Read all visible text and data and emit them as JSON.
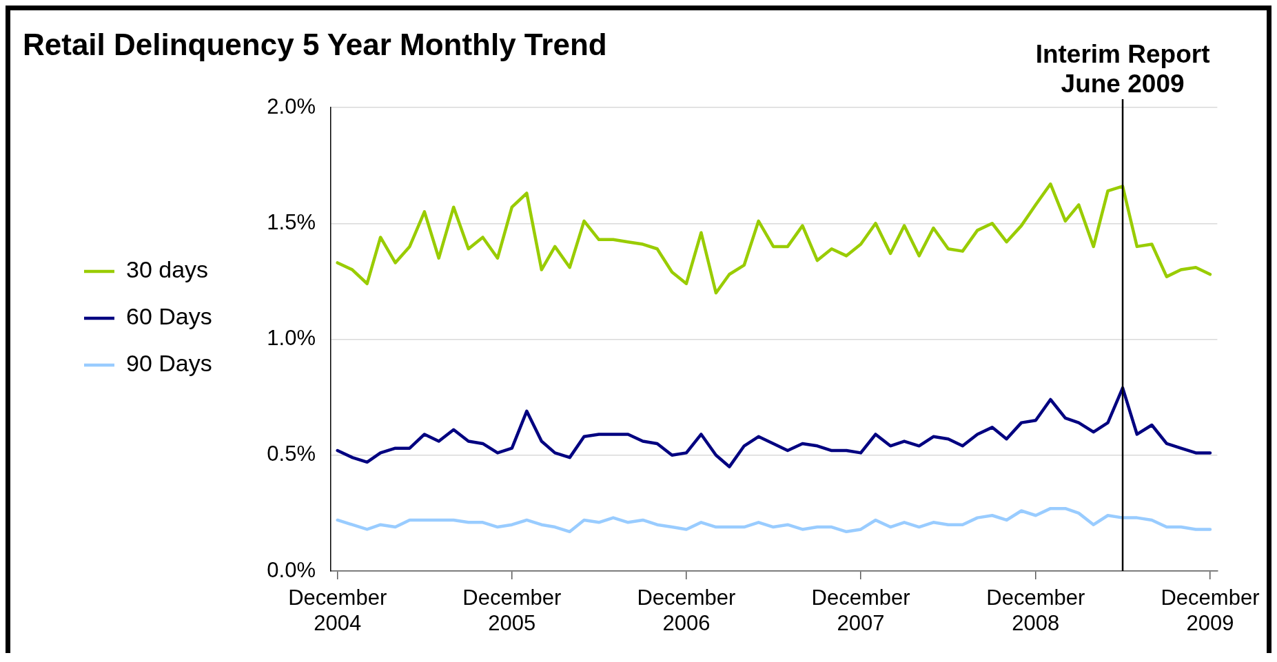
{
  "chart_data": {
    "type": "line",
    "title": "Retail Delinquency 5 Year Monthly Trend",
    "x": [
      "2004-12",
      "2005-01",
      "2005-02",
      "2005-03",
      "2005-04",
      "2005-05",
      "2005-06",
      "2005-07",
      "2005-08",
      "2005-09",
      "2005-10",
      "2005-11",
      "2005-12",
      "2006-01",
      "2006-02",
      "2006-03",
      "2006-04",
      "2006-05",
      "2006-06",
      "2006-07",
      "2006-08",
      "2006-09",
      "2006-10",
      "2006-11",
      "2006-12",
      "2007-01",
      "2007-02",
      "2007-03",
      "2007-04",
      "2007-05",
      "2007-06",
      "2007-07",
      "2007-08",
      "2007-09",
      "2007-10",
      "2007-11",
      "2007-12",
      "2008-01",
      "2008-02",
      "2008-03",
      "2008-04",
      "2008-05",
      "2008-06",
      "2008-07",
      "2008-08",
      "2008-09",
      "2008-10",
      "2008-11",
      "2008-12",
      "2009-01",
      "2009-02",
      "2009-03",
      "2009-04",
      "2009-05",
      "2009-06",
      "2009-07",
      "2009-08",
      "2009-09",
      "2009-10",
      "2009-11",
      "2009-12"
    ],
    "series": [
      {
        "name": "30 days",
        "color": "#99cc00",
        "values": [
          1.33,
          1.3,
          1.24,
          1.44,
          1.33,
          1.4,
          1.55,
          1.35,
          1.57,
          1.39,
          1.44,
          1.35,
          1.57,
          1.63,
          1.3,
          1.4,
          1.31,
          1.51,
          1.43,
          1.43,
          1.42,
          1.41,
          1.39,
          1.29,
          1.24,
          1.46,
          1.2,
          1.28,
          1.32,
          1.51,
          1.4,
          1.4,
          1.49,
          1.34,
          1.39,
          1.36,
          1.41,
          1.5,
          1.37,
          1.49,
          1.36,
          1.48,
          1.39,
          1.38,
          1.47,
          1.5,
          1.42,
          1.49,
          1.58,
          1.67,
          1.51,
          1.58,
          1.4,
          1.64,
          1.66,
          1.4,
          1.41,
          1.27,
          1.3,
          1.31,
          1.28
        ]
      },
      {
        "name": "60 Days",
        "color": "#000080",
        "values": [
          0.52,
          0.49,
          0.47,
          0.51,
          0.53,
          0.53,
          0.59,
          0.56,
          0.61,
          0.56,
          0.55,
          0.51,
          0.53,
          0.69,
          0.56,
          0.51,
          0.49,
          0.58,
          0.59,
          0.59,
          0.59,
          0.56,
          0.55,
          0.5,
          0.51,
          0.59,
          0.5,
          0.45,
          0.54,
          0.58,
          0.55,
          0.52,
          0.55,
          0.54,
          0.52,
          0.52,
          0.51,
          0.59,
          0.54,
          0.56,
          0.54,
          0.58,
          0.57,
          0.54,
          0.59,
          0.62,
          0.57,
          0.64,
          0.65,
          0.74,
          0.66,
          0.64,
          0.6,
          0.64,
          0.79,
          0.59,
          0.63,
          0.55,
          0.53,
          0.51,
          0.51
        ]
      },
      {
        "name": "90 Days",
        "color": "#99ccff",
        "values": [
          0.22,
          0.2,
          0.18,
          0.2,
          0.19,
          0.22,
          0.22,
          0.22,
          0.22,
          0.21,
          0.21,
          0.19,
          0.2,
          0.22,
          0.2,
          0.19,
          0.17,
          0.22,
          0.21,
          0.23,
          0.21,
          0.22,
          0.2,
          0.19,
          0.18,
          0.21,
          0.19,
          0.19,
          0.19,
          0.21,
          0.19,
          0.2,
          0.18,
          0.19,
          0.19,
          0.17,
          0.18,
          0.22,
          0.19,
          0.21,
          0.19,
          0.21,
          0.2,
          0.2,
          0.23,
          0.24,
          0.22,
          0.26,
          0.24,
          0.27,
          0.27,
          0.25,
          0.2,
          0.24,
          0.23,
          0.23,
          0.22,
          0.19,
          0.19,
          0.18,
          0.18
        ]
      }
    ],
    "xlim": [
      "2004-11-17",
      "2009-12-16"
    ],
    "xticks": [
      {
        "value": "2004-12",
        "label": "December 2004"
      },
      {
        "value": "2005-12",
        "label": "December 2005"
      },
      {
        "value": "2006-12",
        "label": "December 2006"
      },
      {
        "value": "2007-12",
        "label": "December 2007"
      },
      {
        "value": "2008-12",
        "label": "December 2008"
      },
      {
        "value": "2009-12",
        "label": "December 2009"
      }
    ],
    "ylim": [
      0,
      2
    ],
    "yticks": [
      {
        "value": 0,
        "label": "0.0%"
      },
      {
        "value": 0.5,
        "label": "0.5%"
      },
      {
        "value": 1,
        "label": "1.0%"
      },
      {
        "value": 1.5,
        "label": "1.5%"
      },
      {
        "value": 2,
        "label": "2.0%"
      }
    ],
    "ref_lines": [
      {
        "axis": "x",
        "value": "2009-06",
        "label": "Interim Report June 2009",
        "color": "#000000"
      }
    ],
    "grid": "y",
    "legend": "left",
    "marker": "none"
  }
}
